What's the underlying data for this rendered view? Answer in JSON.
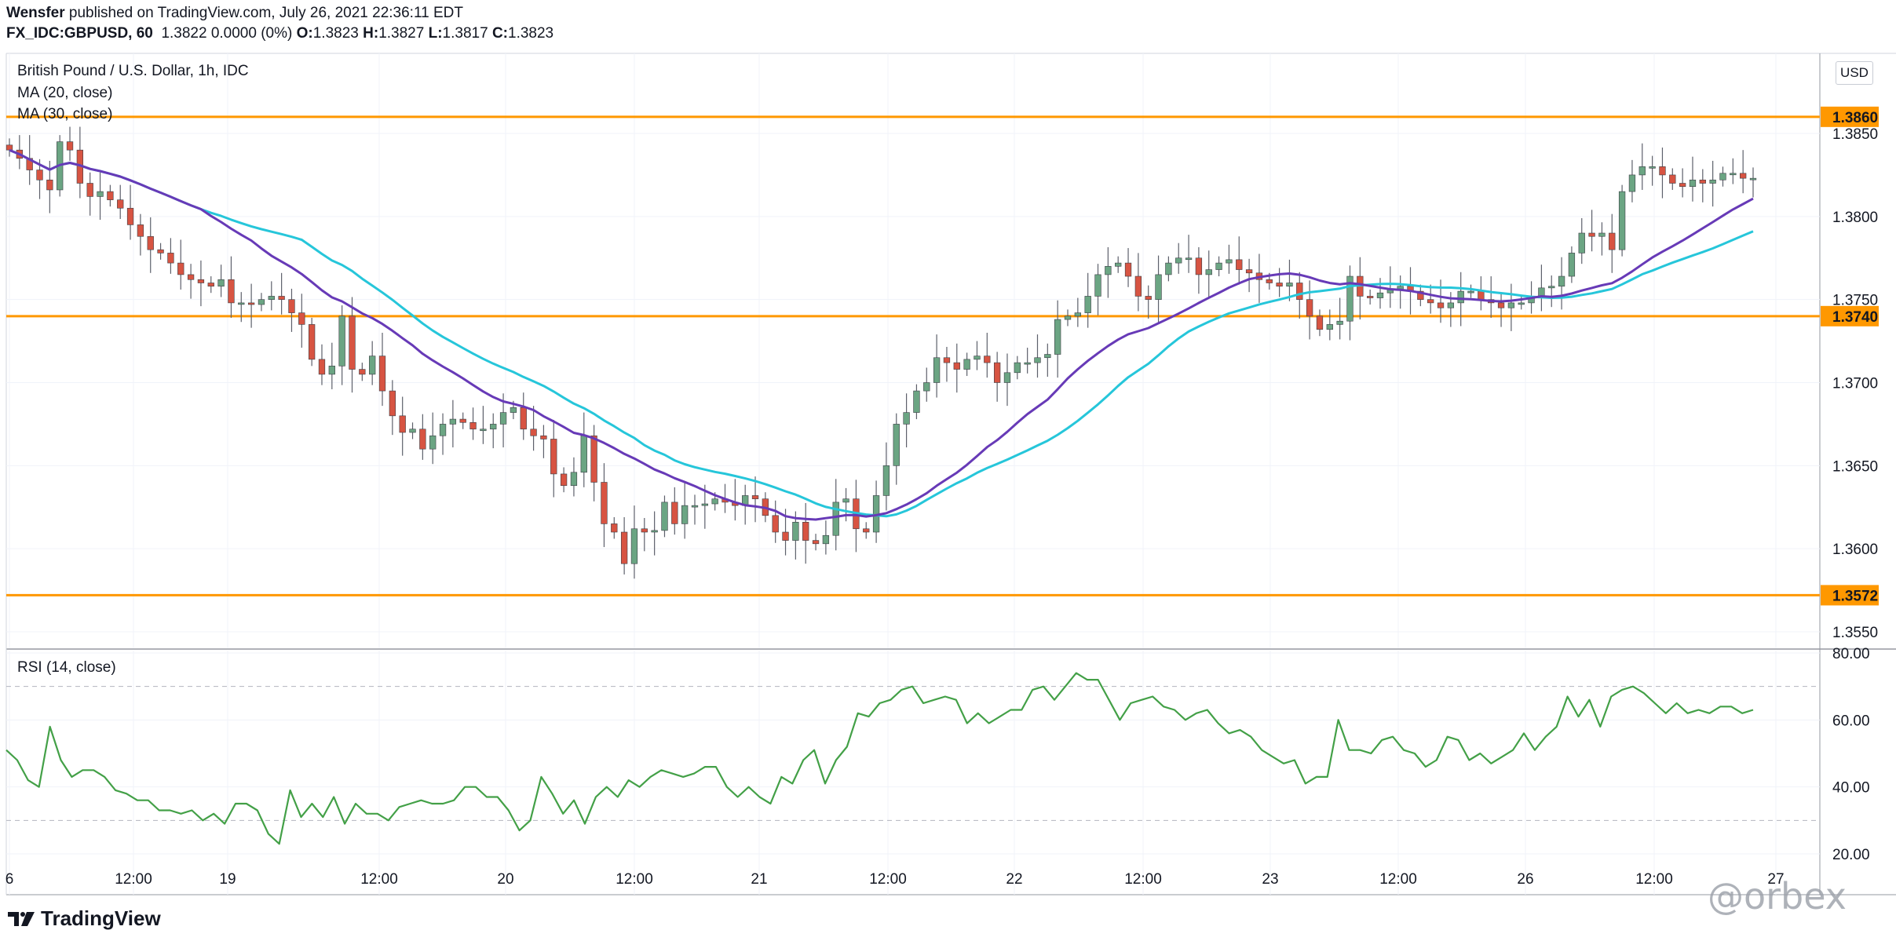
{
  "header": {
    "author": "Wensfer",
    "published_text": "published on TradingView.com, July 26, 2021 22:36:11 EDT",
    "symbol": "FX_IDC:GBPUSD, 60",
    "quote": "1.3822 0.0000 (0%)",
    "o_label": "O:",
    "o_value": "1.3823",
    "h_label": "H:",
    "h_value": "1.3827",
    "l_label": "L:",
    "l_value": "1.3817",
    "c_label": "C:",
    "c_value": "1.3823"
  },
  "chart_data": [
    {
      "type": "candlestick",
      "title": "British Pound / U.S. Dollar, 1h, IDC",
      "currency": "USD",
      "ylim": [
        1.3545,
        1.3875
      ],
      "price_ticks": [
        "1.3850",
        "1.3800",
        "1.3750",
        "1.3700",
        "1.3650",
        "1.3600",
        "1.3550"
      ],
      "x_ticks": [
        "6",
        "12:00",
        "19",
        "12:00",
        "20",
        "12:00",
        "21",
        "12:00",
        "22",
        "12:00",
        "23",
        "12:00",
        "26",
        "12:00",
        "27"
      ],
      "horizontal_levels": [
        {
          "value": 1.386,
          "label": "1.3860"
        },
        {
          "value": 1.374,
          "label": "1.3740"
        },
        {
          "value": 1.3572,
          "label": "1.3572"
        }
      ],
      "ma_legend": [
        "MA (20, close)",
        "MA (30, close)"
      ],
      "colors": {
        "up": "#6ba583",
        "down": "#d75442",
        "wick": "#5d606b",
        "ma20": "#673ab7",
        "ma30": "#26c6da",
        "level": "#ff9800"
      },
      "closes": [
        1.384,
        1.3835,
        1.3828,
        1.3822,
        1.3816,
        1.3845,
        1.384,
        1.382,
        1.3812,
        1.3815,
        1.381,
        1.3805,
        1.3795,
        1.3788,
        1.378,
        1.3778,
        1.3772,
        1.3765,
        1.3762,
        1.376,
        1.3758,
        1.3762,
        1.3748,
        1.3748,
        1.3747,
        1.375,
        1.3752,
        1.375,
        1.3742,
        1.3735,
        1.3714,
        1.3705,
        1.371,
        1.374,
        1.3708,
        1.3705,
        1.3716,
        1.3695,
        1.368,
        1.367,
        1.3672,
        1.366,
        1.3668,
        1.3675,
        1.3678,
        1.3676,
        1.3672,
        1.3672,
        1.3675,
        1.3682,
        1.3685,
        1.3672,
        1.3668,
        1.3666,
        1.3645,
        1.3638,
        1.3646,
        1.3668,
        1.364,
        1.3615,
        1.361,
        1.3591,
        1.3612,
        1.361,
        1.3611,
        1.3628,
        1.3615,
        1.3626,
        1.3626,
        1.3627,
        1.363,
        1.3628,
        1.3626,
        1.3632,
        1.363,
        1.362,
        1.361,
        1.3605,
        1.3616,
        1.3605,
        1.3603,
        1.3608,
        1.3628,
        1.363,
        1.3612,
        1.361,
        1.3632,
        1.365,
        1.3675,
        1.3682,
        1.3695,
        1.37,
        1.3715,
        1.3712,
        1.3708,
        1.3714,
        1.3716,
        1.3712,
        1.37,
        1.3706,
        1.3712,
        1.3712,
        1.3715,
        1.3717,
        1.3738,
        1.374,
        1.3742,
        1.3752,
        1.3765,
        1.377,
        1.3772,
        1.3764,
        1.3752,
        1.375,
        1.3765,
        1.3772,
        1.3775,
        1.3775,
        1.3765,
        1.3768,
        1.3772,
        1.3774,
        1.3768,
        1.3766,
        1.3762,
        1.376,
        1.3758,
        1.376,
        1.375,
        1.374,
        1.3732,
        1.3735,
        1.3737,
        1.3764,
        1.3752,
        1.3751,
        1.3754,
        1.3756,
        1.3758,
        1.3755,
        1.375,
        1.3748,
        1.3745,
        1.3748,
        1.3755,
        1.3755,
        1.375,
        1.3748,
        1.3745,
        1.3748,
        1.3748,
        1.3752,
        1.3757,
        1.3758,
        1.3764,
        1.3778,
        1.379,
        1.3788,
        1.379,
        1.378,
        1.3815,
        1.3825,
        1.383,
        1.383,
        1.3825,
        1.382,
        1.3818,
        1.3822,
        1.382,
        1.3822,
        1.3826,
        1.3826,
        1.3823,
        1.3823
      ],
      "ma20_end": 1.3808,
      "ma30_end": 1.379
    },
    {
      "type": "line",
      "title": "RSI (14, close)",
      "ylim": [
        18,
        82
      ],
      "y_ticks": [
        "80.00",
        "60.00",
        "40.00",
        "20.00"
      ],
      "band": [
        70,
        30
      ],
      "color": "#43a047",
      "values": [
        51,
        48,
        42,
        40,
        58,
        48,
        43,
        45,
        45,
        43,
        39,
        38,
        36,
        36,
        33,
        33,
        32,
        33,
        30,
        32,
        29,
        35,
        35,
        33,
        26,
        23,
        39,
        31,
        35,
        31,
        37,
        29,
        35,
        32,
        32,
        30,
        34,
        35,
        36,
        35,
        35,
        36,
        40,
        40,
        37,
        37,
        33,
        27,
        30,
        43,
        38,
        32,
        36,
        29,
        37,
        40,
        37,
        42,
        40,
        43,
        45,
        44,
        43,
        44,
        46,
        46,
        40,
        37,
        40,
        37,
        35,
        43,
        41,
        48,
        51,
        41,
        48,
        52,
        62,
        61,
        65,
        66,
        69,
        70,
        65,
        66,
        67,
        66,
        59,
        62,
        59,
        61,
        63,
        63,
        69,
        70,
        66,
        70,
        74,
        72,
        72,
        66,
        60,
        65,
        66,
        67,
        64,
        63,
        60,
        62,
        63,
        59,
        56,
        57,
        55,
        51,
        49,
        47,
        48,
        41,
        43,
        43,
        60,
        51,
        51,
        50,
        54,
        55,
        51,
        50,
        46,
        48,
        55,
        54,
        48,
        50,
        47,
        49,
        51,
        56,
        51,
        55,
        58,
        67,
        61,
        66,
        58,
        67,
        69,
        70,
        68,
        65,
        62,
        65,
        62,
        63,
        62,
        64,
        64,
        62,
        63
      ]
    }
  ],
  "footer": {
    "brand": "TradingView",
    "watermark": "@orbex"
  }
}
